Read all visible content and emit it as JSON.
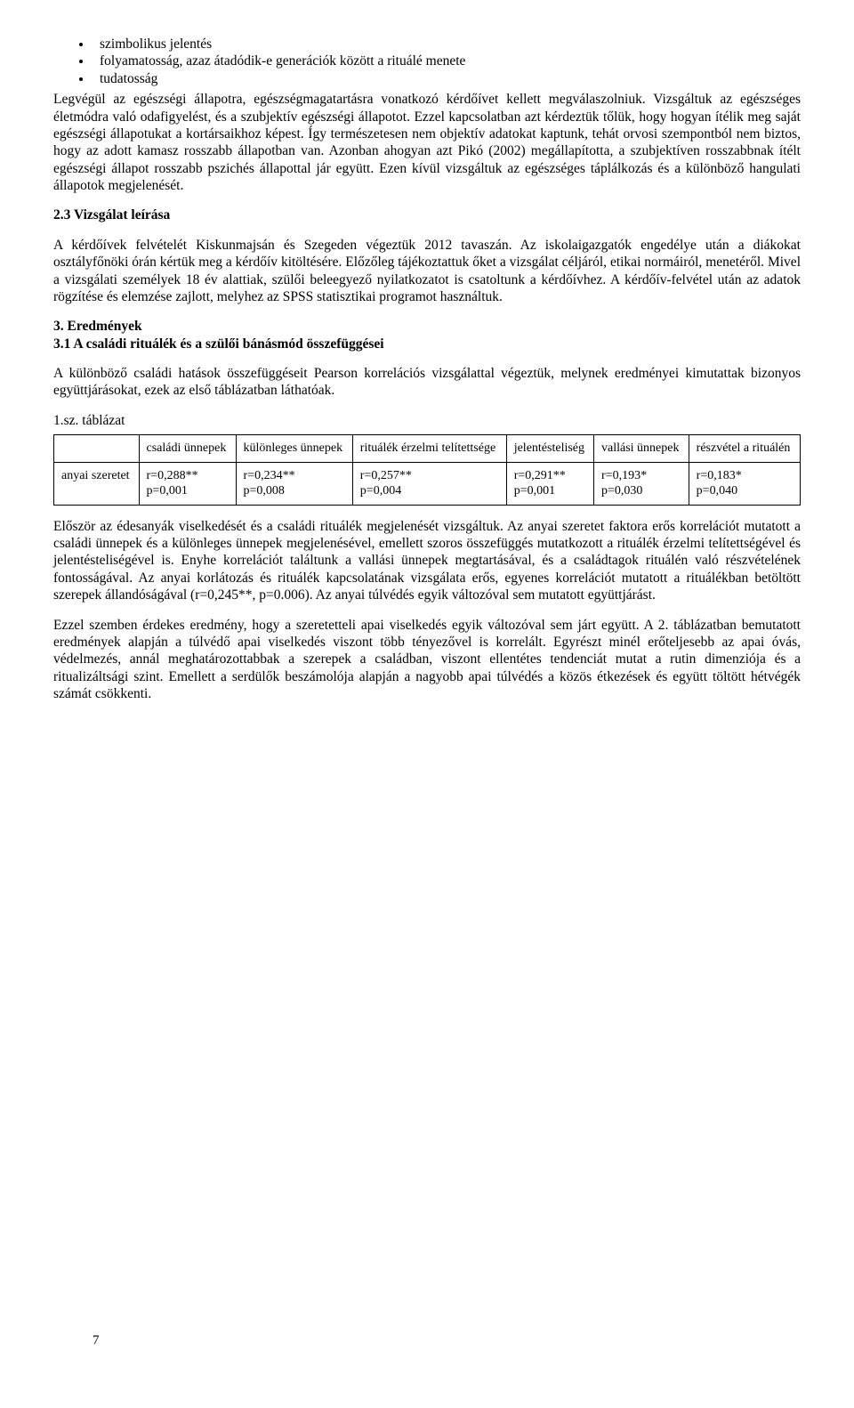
{
  "bullets": [
    "szimbolikus jelentés",
    "folyamatosság, azaz átadódik-e generációk között a rituálé menete",
    "tudatosság"
  ],
  "para1": "Legvégül az egészségi állapotra, egészségmagatartásra vonatkozó kérdőívet kellett megválaszolniuk. Vizsgáltuk az egészséges életmódra való odafigyelést, és a szubjektív egészségi állapotot. Ezzel kapcsolatban azt kérdeztük tőlük, hogy hogyan ítélik meg saját egészségi állapotukat a kortársaikhoz képest. Így természetesen nem objektív adatokat kaptunk, tehát orvosi szempontból nem biztos, hogy az adott kamasz rosszabb állapotban van. Azonban ahogyan azt Pikó (2002) megállapította, a szubjektíven rosszabbnak ítélt egészségi állapot rosszabb pszichés állapottal jár együtt. Ezen kívül vizsgáltuk az egészséges táplálkozás és a különböző hangulati állapotok megjelenését.",
  "heading23": "2.3 Vizsgálat leírása",
  "para2": "A kérdőívek felvételét Kiskunmajsán és Szegeden végeztük 2012 tavaszán. Az iskolaigazgatók engedélye után a diákokat osztályfőnöki órán kértük meg a kérdőív kitöltésére. Előzőleg tájékoztattuk őket a vizsgálat céljáról, etikai normáiról, menetéről. Mivel a vizsgálati személyek 18 év alattiak, szülői beleegyező nyilatkozatot is csatoltunk a kérdőívhez. A kérdőív-felvétel után az adatok rögzítése és elemzése zajlott, melyhez az SPSS statisztikai programot használtuk.",
  "heading3": "3.  Eredmények",
  "heading31": "3.1 A családi rituálék és a szülői bánásmód összefüggései",
  "para3": "A különböző családi hatások összefüggéseit Pearson korrelációs vizsgálattal végeztük, melynek eredményei kimutattak bizonyos együttjárásokat, ezek az  első táblázatban láthatóak.",
  "tableCaption": "1.sz. táblázat",
  "table": {
    "headers": [
      "",
      "családi ünnepek",
      "különleges ünnepek",
      "rituálék érzelmi telítettsége",
      "jelentésteliség",
      "vallási ünnepek",
      "részvétel a rituálén"
    ],
    "rowLabel": "anyai szeretet",
    "cells": [
      {
        "r": "r=0,288**",
        "p": "p=0,001"
      },
      {
        "r": "r=0,234**",
        "p": "p=0,008"
      },
      {
        "r": "r=0,257**",
        "p": "p=0,004"
      },
      {
        "r": "r=0,291**",
        "p": "p=0,001"
      },
      {
        "r": "r=0,193*",
        "p": "p=0,030"
      },
      {
        "r": "r=0,183*",
        "p": "p=0,040"
      }
    ],
    "border_color": "#000000",
    "header_fontsize": 14,
    "cell_fontsize": 14
  },
  "para4": "Először az édesanyák viselkedését és a családi rituálék megjelenését vizsgáltuk.  Az anyai szeretet faktora erős korrelációt mutatott a családi ünnepek és a különleges ünnepek megjelenésével, emellett szoros összefüggés mutatkozott a rituálék érzelmi telítettségével és jelentésteliségével is. Enyhe korrelációt találtunk a vallási ünnepek megtartásával, és a családtagok rituálén való részvételének fontosságával. Az anyai korlátozás és rituálék kapcsolatának vizsgálata erős, egyenes korrelációt mutatott a rituálékban betöltött szerepek állandóságával (r=0,245**, p=0.006). Az anyai túlvédés egyik változóval sem mutatott együttjárást.",
  "para5": "Ezzel szemben érdekes eredmény, hogy a szeretetteli apai viselkedés egyik változóval sem járt együtt.  A 2.  táblázatban bemutatott eredmények alapján a túlvédő apai viselkedés viszont több tényezővel is korrelált. Egyrészt minél erőteljesebb az apai óvás, védelmezés, annál meghatározottabbak a szerepek a családban, viszont ellentétes tendenciát mutat a rutin dimenziója és a ritualizáltsági szint. Emellett a serdülők beszámolója alapján a nagyobb apai túlvédés a közös étkezések és együtt töltött hétvégék számát csökkenti.",
  "pageNumber": "7"
}
